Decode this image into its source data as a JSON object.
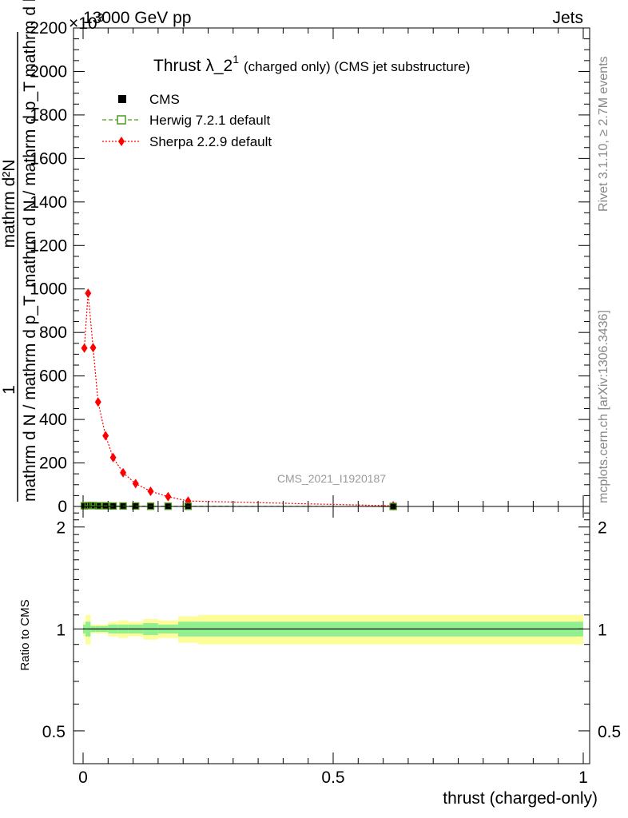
{
  "header": {
    "left": "13000 GeV pp",
    "right": "Jets",
    "multiplier": "×10",
    "multiplier_exp": "3"
  },
  "side_labels": {
    "rivet": "Rivet 3.1.10, ≥ 2.7M events",
    "mcplots": "mcplots.cern.ch [arXiv:1306.3436]"
  },
  "watermark": "CMS_2021_I1920187",
  "chart_data": {
    "type": "scatter",
    "title": "Thrust λ_2",
    "title_sup": "1",
    "title_suffix": "(charged only) (CMS jet substructure)",
    "ylabel": {
      "one": "1",
      "top": "mathrm d N / mathrm d p_T",
      "top_sub": "T",
      "bottom": "mathrm d N / mathrm d p_T mathrm d lambda",
      "bottom_top": "mathrm d²N"
    },
    "ylim": [
      0,
      2200
    ],
    "yticks": [
      0,
      200,
      400,
      600,
      800,
      1000,
      1200,
      1400,
      1600,
      1800,
      2000,
      2200
    ],
    "ytick_labels": [
      "0",
      "200",
      "400",
      "600",
      "800",
      "1000",
      "1200",
      "1400",
      "1600",
      "1800",
      "2000",
      "2200"
    ],
    "xlim": [
      -0.02,
      1.0
    ],
    "xticks": [
      0,
      0.5,
      1
    ],
    "xtick_labels": [
      "0",
      "0.5",
      "1"
    ],
    "xlabel": "thrust (charged-only)",
    "legend_position": "top-left",
    "series": [
      {
        "name": "CMS",
        "color": "#000000",
        "marker": "square",
        "x": [
          0.0025,
          0.01,
          0.02,
          0.03,
          0.045,
          0.06,
          0.08,
          0.105,
          0.135,
          0.17,
          0.21,
          0.62
        ],
        "y": [
          3,
          4,
          4,
          3,
          3,
          2,
          2,
          2,
          1,
          1,
          1,
          0
        ]
      },
      {
        "name": "Herwig 7.2.1 default",
        "color": "#4f9a1a",
        "marker": "open-square",
        "x": [
          0.0025,
          0.01,
          0.02,
          0.03,
          0.045,
          0.06,
          0.08,
          0.105,
          0.135,
          0.17,
          0.21,
          0.62
        ],
        "y": [
          3,
          4,
          4,
          3,
          3,
          2,
          2,
          2,
          1,
          1,
          1,
          0
        ]
      },
      {
        "name": "Sherpa 2.2.9 default",
        "color": "#ff0000",
        "marker": "diamond",
        "x": [
          0.0025,
          0.01,
          0.02,
          0.03,
          0.045,
          0.06,
          0.08,
          0.105,
          0.135,
          0.17,
          0.21,
          0.62
        ],
        "y": [
          728,
          980,
          730,
          480,
          325,
          225,
          155,
          105,
          70,
          45,
          25,
          3
        ]
      }
    ],
    "ratio": {
      "ylabel": "Ratio to CMS",
      "ylim": [
        0.4,
        2.3
      ],
      "yticks": [
        0.5,
        1,
        2
      ],
      "ytick_labels": [
        "0.5",
        "1",
        "2"
      ],
      "reference": 1,
      "bins": [
        0,
        0.005,
        0.015,
        0.025,
        0.035,
        0.05,
        0.07,
        0.09,
        0.12,
        0.15,
        0.19,
        0.23,
        1.0
      ],
      "stat_band": [
        0.03,
        0.05,
        0.02,
        0.02,
        0.02,
        0.03,
        0.03,
        0.03,
        0.04,
        0.03,
        0.05,
        0.05
      ],
      "total_band": [
        0.05,
        0.1,
        0.03,
        0.03,
        0.03,
        0.05,
        0.06,
        0.05,
        0.07,
        0.06,
        0.09,
        0.1
      ]
    }
  }
}
